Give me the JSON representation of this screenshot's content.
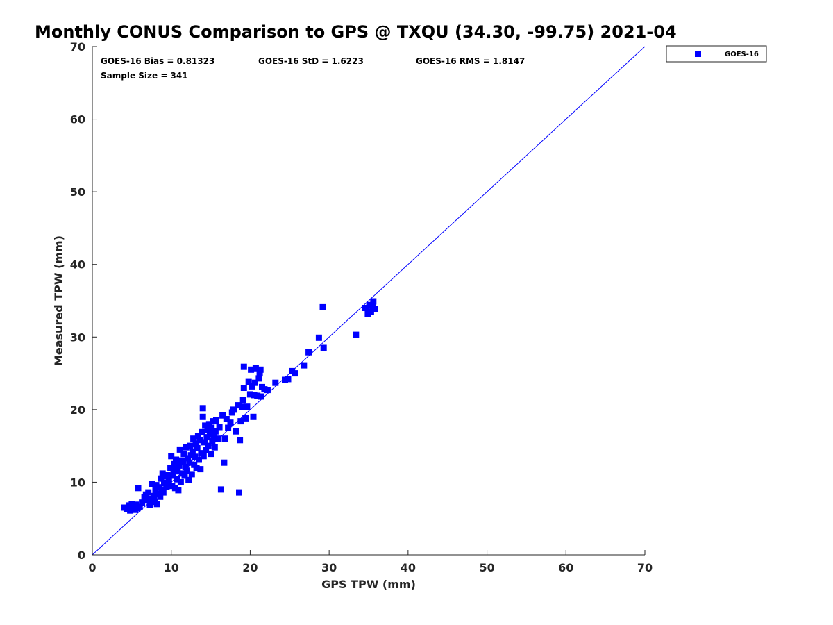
{
  "chart_data": {
    "type": "scatter",
    "title": "Monthly CONUS Comparison to GPS @ TXQU (34.30, -99.75) 2021-04",
    "xlabel": "GPS TPW (mm)",
    "ylabel": "Measured TPW (mm)",
    "xlim": [
      0,
      70
    ],
    "ylim": [
      0,
      70
    ],
    "xticks": [
      "0",
      "10",
      "20",
      "30",
      "40",
      "50",
      "60",
      "70"
    ],
    "yticks": [
      "0",
      "10",
      "20",
      "30",
      "40",
      "50",
      "60",
      "70"
    ],
    "grid": false,
    "legend": {
      "position": "outside-top-right",
      "entries": [
        "GOES-16"
      ]
    },
    "stats": {
      "bias": "GOES-16 Bias = 0.81323",
      "std": "GOES-16 StD = 1.6223",
      "rms": "GOES-16 RMS = 1.8147",
      "sample": "Sample Size = 341"
    },
    "reference_line": {
      "type": "one-to-one",
      "from": [
        0,
        0
      ],
      "to": [
        70,
        70
      ]
    },
    "colors": {
      "series": "#0000ff",
      "line": "#0000ff",
      "axis": "#262626"
    },
    "series": [
      {
        "name": "GOES-16",
        "marker": "square",
        "points": [
          [
            4.0,
            6.5
          ],
          [
            4.4,
            6.3
          ],
          [
            4.7,
            6.8
          ],
          [
            4.8,
            6.1
          ],
          [
            5.0,
            7.0
          ],
          [
            5.2,
            6.5
          ],
          [
            5.4,
            6.2
          ],
          [
            5.5,
            6.9
          ],
          [
            5.7,
            6.4
          ],
          [
            6.0,
            6.6
          ],
          [
            5.8,
            9.2
          ],
          [
            6.3,
            7.2
          ],
          [
            6.6,
            7.9
          ],
          [
            6.8,
            8.3
          ],
          [
            7.0,
            7.5
          ],
          [
            7.1,
            8.6
          ],
          [
            7.3,
            6.9
          ],
          [
            7.5,
            7.7
          ],
          [
            7.6,
            9.8
          ],
          [
            7.8,
            8.1
          ],
          [
            7.9,
            7.3
          ],
          [
            8.0,
            8.9
          ],
          [
            8.1,
            9.6
          ],
          [
            8.2,
            7.0
          ],
          [
            8.3,
            8.4
          ],
          [
            8.4,
            9.3
          ],
          [
            8.6,
            8.0
          ],
          [
            8.7,
            10.5
          ],
          [
            8.8,
            9.0
          ],
          [
            8.9,
            11.2
          ],
          [
            9.0,
            8.6
          ],
          [
            9.1,
            9.9
          ],
          [
            9.2,
            10.8
          ],
          [
            9.4,
            9.4
          ],
          [
            9.5,
            11.0
          ],
          [
            9.7,
            10.2
          ],
          [
            9.9,
            12.0
          ],
          [
            10.0,
            13.6
          ],
          [
            10.1,
            9.5
          ],
          [
            10.2,
            10.9
          ],
          [
            10.3,
            11.7
          ],
          [
            10.4,
            12.5
          ],
          [
            10.5,
            9.2
          ],
          [
            10.6,
            13.1
          ],
          [
            10.7,
            10.4
          ],
          [
            10.8,
            11.5
          ],
          [
            10.9,
            8.9
          ],
          [
            11.0,
            12.3
          ],
          [
            11.1,
            14.5
          ],
          [
            11.2,
            10.0
          ],
          [
            11.3,
            13.0
          ],
          [
            11.4,
            11.2
          ],
          [
            11.5,
            12.8
          ],
          [
            11.6,
            13.9
          ],
          [
            11.7,
            10.9
          ],
          [
            11.8,
            12.1
          ],
          [
            11.9,
            14.8
          ],
          [
            12.0,
            11.6
          ],
          [
            12.1,
            13.3
          ],
          [
            12.2,
            10.3
          ],
          [
            12.3,
            12.7
          ],
          [
            12.4,
            15.0
          ],
          [
            12.5,
            13.7
          ],
          [
            12.6,
            11.1
          ],
          [
            12.7,
            14.2
          ],
          [
            12.8,
            16.0
          ],
          [
            12.9,
            12.4
          ],
          [
            13.0,
            13.5
          ],
          [
            13.1,
            15.3
          ],
          [
            13.2,
            12.0
          ],
          [
            13.3,
            14.7
          ],
          [
            13.4,
            16.4
          ],
          [
            13.5,
            13.1
          ],
          [
            13.6,
            15.8
          ],
          [
            13.7,
            11.8
          ],
          [
            13.8,
            14.0
          ],
          [
            13.9,
            16.9
          ],
          [
            14.0,
            20.2
          ],
          [
            14.0,
            19.0
          ],
          [
            14.1,
            13.6
          ],
          [
            14.2,
            15.5
          ],
          [
            14.3,
            17.8
          ],
          [
            14.4,
            14.4
          ],
          [
            14.5,
            16.2
          ],
          [
            14.6,
            17.2
          ],
          [
            14.7,
            15.0
          ],
          [
            14.8,
            18.0
          ],
          [
            14.9,
            16.6
          ],
          [
            15.0,
            13.9
          ],
          [
            15.1,
            17.5
          ],
          [
            15.2,
            15.7
          ],
          [
            15.3,
            18.4
          ],
          [
            15.4,
            16.3
          ],
          [
            15.5,
            14.8
          ],
          [
            15.6,
            17.0
          ],
          [
            15.7,
            18.5
          ],
          [
            15.9,
            16.0
          ],
          [
            16.1,
            17.6
          ],
          [
            16.3,
            9.0
          ],
          [
            16.5,
            19.2
          ],
          [
            16.7,
            12.7
          ],
          [
            16.8,
            16.0
          ],
          [
            17.0,
            18.7
          ],
          [
            17.2,
            17.5
          ],
          [
            17.5,
            18.2
          ],
          [
            17.7,
            19.6
          ],
          [
            17.9,
            20.0
          ],
          [
            18.2,
            17.0
          ],
          [
            18.5,
            20.6
          ],
          [
            18.6,
            8.6
          ],
          [
            18.7,
            15.8
          ],
          [
            18.8,
            18.4
          ],
          [
            19.0,
            20.4
          ],
          [
            19.1,
            21.3
          ],
          [
            19.2,
            23.0
          ],
          [
            19.2,
            25.9
          ],
          [
            19.4,
            18.8
          ],
          [
            19.6,
            20.4
          ],
          [
            19.8,
            23.8
          ],
          [
            20.0,
            22.1
          ],
          [
            20.1,
            25.5
          ],
          [
            20.2,
            23.2
          ],
          [
            20.4,
            19.0
          ],
          [
            20.5,
            22.0
          ],
          [
            20.6,
            23.7
          ],
          [
            20.7,
            25.7
          ],
          [
            20.9,
            21.9
          ],
          [
            21.1,
            24.3
          ],
          [
            21.2,
            25.0
          ],
          [
            21.3,
            25.5
          ],
          [
            21.4,
            21.8
          ],
          [
            21.5,
            23.1
          ],
          [
            21.8,
            22.8
          ],
          [
            22.2,
            22.7
          ],
          [
            23.2,
            23.7
          ],
          [
            24.4,
            24.1
          ],
          [
            24.8,
            24.2
          ],
          [
            25.3,
            25.3
          ],
          [
            25.7,
            25.0
          ],
          [
            26.8,
            26.1
          ],
          [
            27.4,
            27.9
          ],
          [
            28.7,
            29.9
          ],
          [
            29.2,
            34.1
          ],
          [
            29.3,
            28.5
          ],
          [
            33.4,
            30.3
          ],
          [
            34.6,
            34.0
          ],
          [
            34.9,
            33.2
          ],
          [
            35.1,
            34.4
          ],
          [
            35.3,
            33.5
          ],
          [
            35.5,
            34.2
          ],
          [
            35.6,
            34.9
          ],
          [
            35.8,
            33.9
          ]
        ]
      }
    ]
  }
}
